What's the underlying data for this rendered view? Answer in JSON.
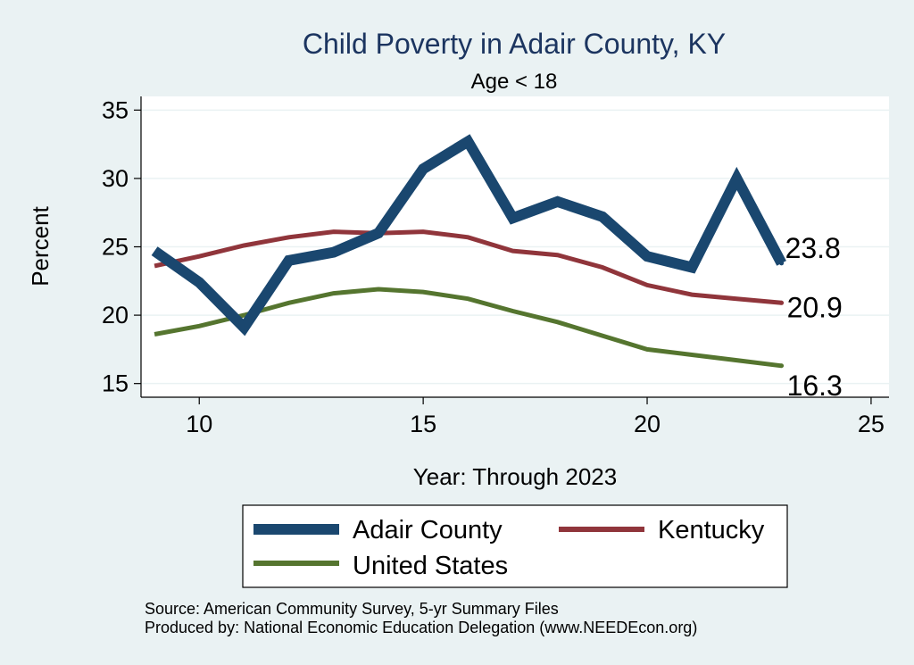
{
  "chart_data": {
    "type": "line",
    "title": "Child Poverty in Adair County, KY",
    "subtitle": "Age < 18",
    "xlabel": "Year: Through 2023",
    "ylabel": "Percent",
    "xlim": [
      8.7,
      25.4
    ],
    "ylim": [
      14,
      36
    ],
    "xticks": [
      10,
      15,
      20,
      25
    ],
    "yticks": [
      15,
      20,
      25,
      30,
      35
    ],
    "x": [
      9,
      10,
      11,
      12,
      13,
      14,
      15,
      16,
      17,
      18,
      19,
      20,
      21,
      22,
      23
    ],
    "series": [
      {
        "name": "Adair County",
        "color": "#1a476f",
        "values": [
          24.7,
          22.4,
          19.1,
          24.0,
          24.6,
          26.0,
          30.7,
          32.7,
          27.1,
          28.3,
          27.2,
          24.3,
          23.5,
          30.0,
          23.8
        ],
        "end_label": "23.8"
      },
      {
        "name": "Kentucky",
        "color": "#90353b",
        "values": [
          23.6,
          24.3,
          25.1,
          25.7,
          26.1,
          26.0,
          26.1,
          25.7,
          24.7,
          24.4,
          23.5,
          22.2,
          21.5,
          21.2,
          20.9
        ],
        "end_label": "20.9"
      },
      {
        "name": "United States",
        "color": "#55752f",
        "values": [
          18.6,
          19.2,
          20.0,
          20.9,
          21.6,
          21.9,
          21.7,
          21.2,
          20.3,
          19.5,
          18.5,
          17.5,
          17.1,
          16.7,
          16.3
        ],
        "end_label": "16.3"
      }
    ],
    "legend_position": "bottom"
  },
  "notes": {
    "source": "Source: American Community Survey, 5-yr Summary Files",
    "producer": "Produced by: National Economic Education Delegation (www.NEEDEcon.org)"
  }
}
